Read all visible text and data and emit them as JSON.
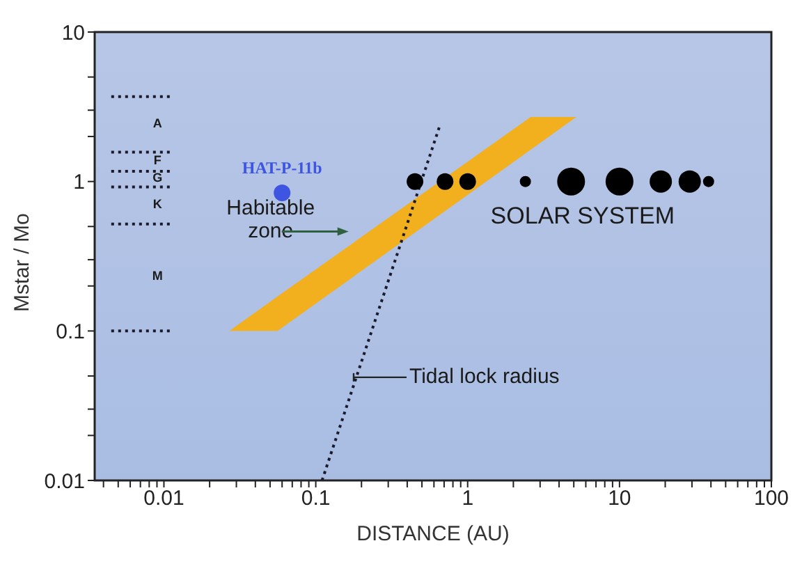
{
  "chart_data": {
    "type": "scatter",
    "xlabel": "DISTANCE  (AU)",
    "ylabel": "Mstar / Mo",
    "log": "xy",
    "grid": false,
    "legend": false,
    "xlim": [
      0.0035,
      100
    ],
    "ylim": [
      0.01,
      10
    ],
    "xticks": [
      {
        "value": 0.004,
        "label": null
      },
      {
        "value": 0.005,
        "label": null
      },
      {
        "value": 0.006,
        "label": null
      },
      {
        "value": 0.007,
        "label": null
      },
      {
        "value": 0.008,
        "label": null
      },
      {
        "value": 0.009,
        "label": null
      },
      0.01,
      {
        "value": 0.02,
        "label": null
      },
      {
        "value": 0.03,
        "label": null
      },
      {
        "value": 0.04,
        "label": null
      },
      {
        "value": 0.05,
        "label": null
      },
      {
        "value": 0.06,
        "label": null
      },
      {
        "value": 0.07,
        "label": null
      },
      {
        "value": 0.08,
        "label": null
      },
      {
        "value": 0.09,
        "label": null
      },
      0.1,
      {
        "value": 0.2,
        "label": null
      },
      {
        "value": 0.3,
        "label": null
      },
      {
        "value": 0.4,
        "label": null
      },
      {
        "value": 0.5,
        "label": null
      },
      {
        "value": 0.6,
        "label": null
      },
      {
        "value": 0.7,
        "label": null
      },
      {
        "value": 0.8,
        "label": null
      },
      {
        "value": 0.9,
        "label": null
      },
      1,
      {
        "value": 2,
        "label": null
      },
      {
        "value": 3,
        "label": null
      },
      {
        "value": 4,
        "label": null
      },
      {
        "value": 5,
        "label": null
      },
      {
        "value": 6,
        "label": null
      },
      {
        "value": 7,
        "label": null
      },
      {
        "value": 8,
        "label": null
      },
      {
        "value": 9,
        "label": null
      },
      10,
      {
        "value": 20,
        "label": null
      },
      {
        "value": 30,
        "label": null
      },
      {
        "value": 40,
        "label": null
      },
      {
        "value": 50,
        "label": null
      },
      {
        "value": 60,
        "label": null
      },
      {
        "value": 70,
        "label": null
      },
      {
        "value": 80,
        "label": null
      },
      {
        "value": 90,
        "label": null
      },
      100
    ],
    "yticks": [
      0.01,
      {
        "value": 0.02,
        "label": null
      },
      {
        "value": 0.03,
        "label": null
      },
      {
        "value": 0.05,
        "label": null
      },
      0.1,
      {
        "value": 0.2,
        "label": null
      },
      {
        "value": 0.3,
        "label": null
      },
      {
        "value": 0.5,
        "label": null
      },
      1,
      {
        "value": 2,
        "label": null
      },
      {
        "value": 3,
        "label": null
      },
      {
        "value": 5,
        "label": null
      },
      10
    ],
    "series": [
      {
        "type": "area",
        "color": "#f2b01e",
        "x": [
          0.027,
          0.056,
          2.6,
          5.2
        ],
        "lower": [
          0.1,
          0.1,
          1.63,
          2.7
        ],
        "upper": [
          0.1,
          0.17,
          2.7,
          2.7
        ],
        "values": [
          null,
          null,
          null,
          null
        ]
      },
      {
        "type": "line",
        "color": "#1a1a2a",
        "line_style": "dotted",
        "x": [
          0.11,
          0.65
        ],
        "values": [
          0.01,
          2.3
        ]
      },
      {
        "type": "line",
        "color": "#1a1a2a",
        "line_style": "dotted",
        "x": [
          0.0045,
          0.011
        ],
        "values": [
          3.7,
          3.7
        ]
      },
      {
        "type": "line",
        "color": "#1a1a2a",
        "line_style": "dotted",
        "x": [
          0.0045,
          0.011
        ],
        "values": [
          1.57,
          1.57
        ]
      },
      {
        "type": "line",
        "color": "#1a1a2a",
        "line_style": "dotted",
        "x": [
          0.0045,
          0.011
        ],
        "values": [
          1.17,
          1.17
        ]
      },
      {
        "type": "line",
        "color": "#1a1a2a",
        "line_style": "dotted",
        "x": [
          0.0045,
          0.011
        ],
        "values": [
          0.92,
          0.92
        ]
      },
      {
        "type": "line",
        "color": "#1a1a2a",
        "line_style": "dotted",
        "x": [
          0.0045,
          0.011
        ],
        "values": [
          0.52,
          0.52
        ]
      },
      {
        "type": "line",
        "color": "#1a1a2a",
        "line_style": "dotted",
        "x": [
          0.0045,
          0.011
        ],
        "values": [
          0.1,
          0.1
        ]
      },
      {
        "type": "bubble",
        "color": "#000000",
        "x": [
          0.45,
          0.71,
          1,
          2.4,
          4.8,
          10,
          18.7,
          29,
          38.6
        ],
        "values": [
          1,
          1,
          1,
          1,
          1,
          1,
          1,
          1,
          1
        ],
        "sizes": [
          0.36,
          0.36,
          0.36,
          0.16,
          1,
          1,
          0.64,
          0.64,
          0.16
        ]
      },
      {
        "name": "HAT-P-11b",
        "color": "#3d55e0",
        "x": [
          0.06
        ],
        "values": [
          0.84
        ]
      }
    ],
    "annotations": [
      "A",
      "F",
      "G",
      "K",
      "M",
      "Habitable zone",
      "Tidal lock radius",
      "SOLAR SYSTEM"
    ]
  }
}
